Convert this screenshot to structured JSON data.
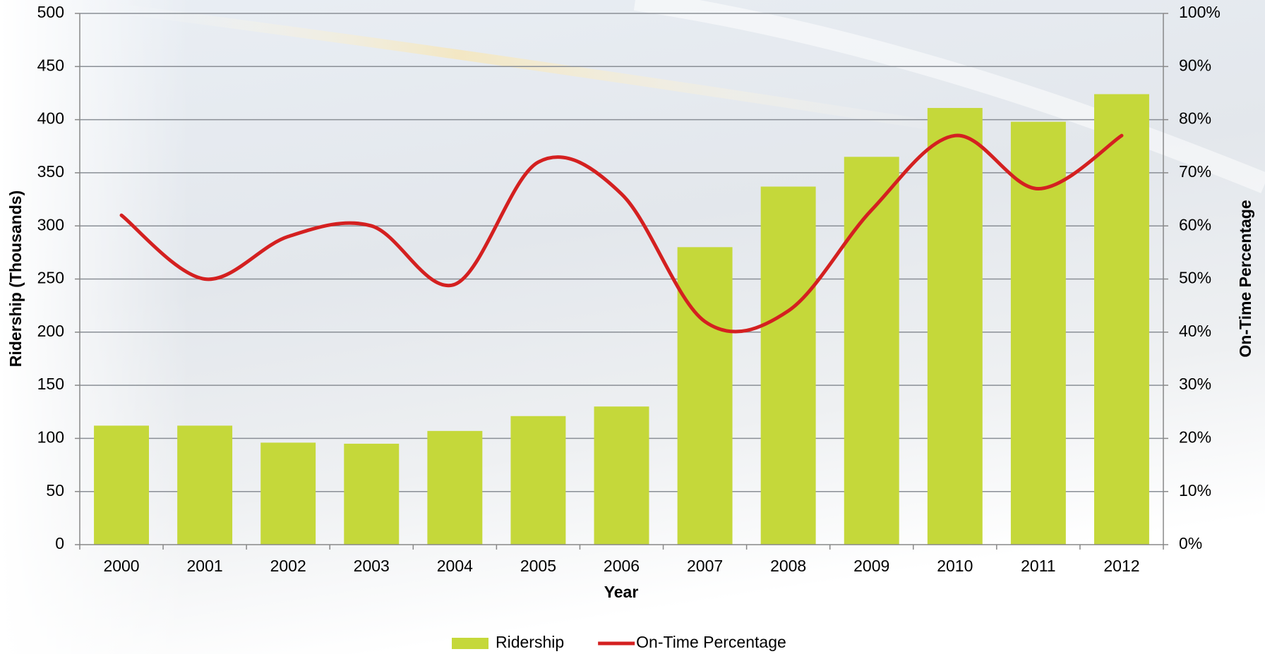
{
  "chart_data": {
    "type": "bar",
    "x_label": "Year",
    "y_label": "Ridership (Thousands)",
    "y2_label": "On-Time Percentage",
    "categories": [
      "2000",
      "2001",
      "2002",
      "2003",
      "2004",
      "2005",
      "2006",
      "2007",
      "2008",
      "2009",
      "2010",
      "2011",
      "2012"
    ],
    "series": [
      {
        "name": "Ridership",
        "type": "bar",
        "color": "#c5d83a",
        "values": [
          112,
          112,
          96,
          95,
          107,
          121,
          130,
          280,
          337,
          365,
          411,
          398,
          424
        ]
      },
      {
        "name": "On-Time Percentage",
        "type": "line",
        "axis": "y2",
        "color": "#d42020",
        "values": [
          62,
          50,
          58,
          60,
          49,
          72,
          66,
          42,
          44,
          63,
          77,
          67,
          77
        ]
      }
    ],
    "ylim": [
      0,
      500
    ],
    "yticks": [
      0,
      50,
      100,
      150,
      200,
      250,
      300,
      350,
      400,
      450,
      500
    ],
    "y2lim": [
      0,
      100
    ],
    "y2ticks": [
      {
        "value": 0,
        "label": "0%"
      },
      {
        "value": 10,
        "label": "10%"
      },
      {
        "value": 20,
        "label": "20%"
      },
      {
        "value": 30,
        "label": "30%"
      },
      {
        "value": 40,
        "label": "40%"
      },
      {
        "value": 50,
        "label": "50%"
      },
      {
        "value": 60,
        "label": "60%"
      },
      {
        "value": 70,
        "label": "70%"
      },
      {
        "value": 80,
        "label": "80%"
      },
      {
        "value": 90,
        "label": "90%"
      },
      {
        "value": 100,
        "label": "100%"
      }
    ],
    "grid": true,
    "legend": "bottom"
  }
}
